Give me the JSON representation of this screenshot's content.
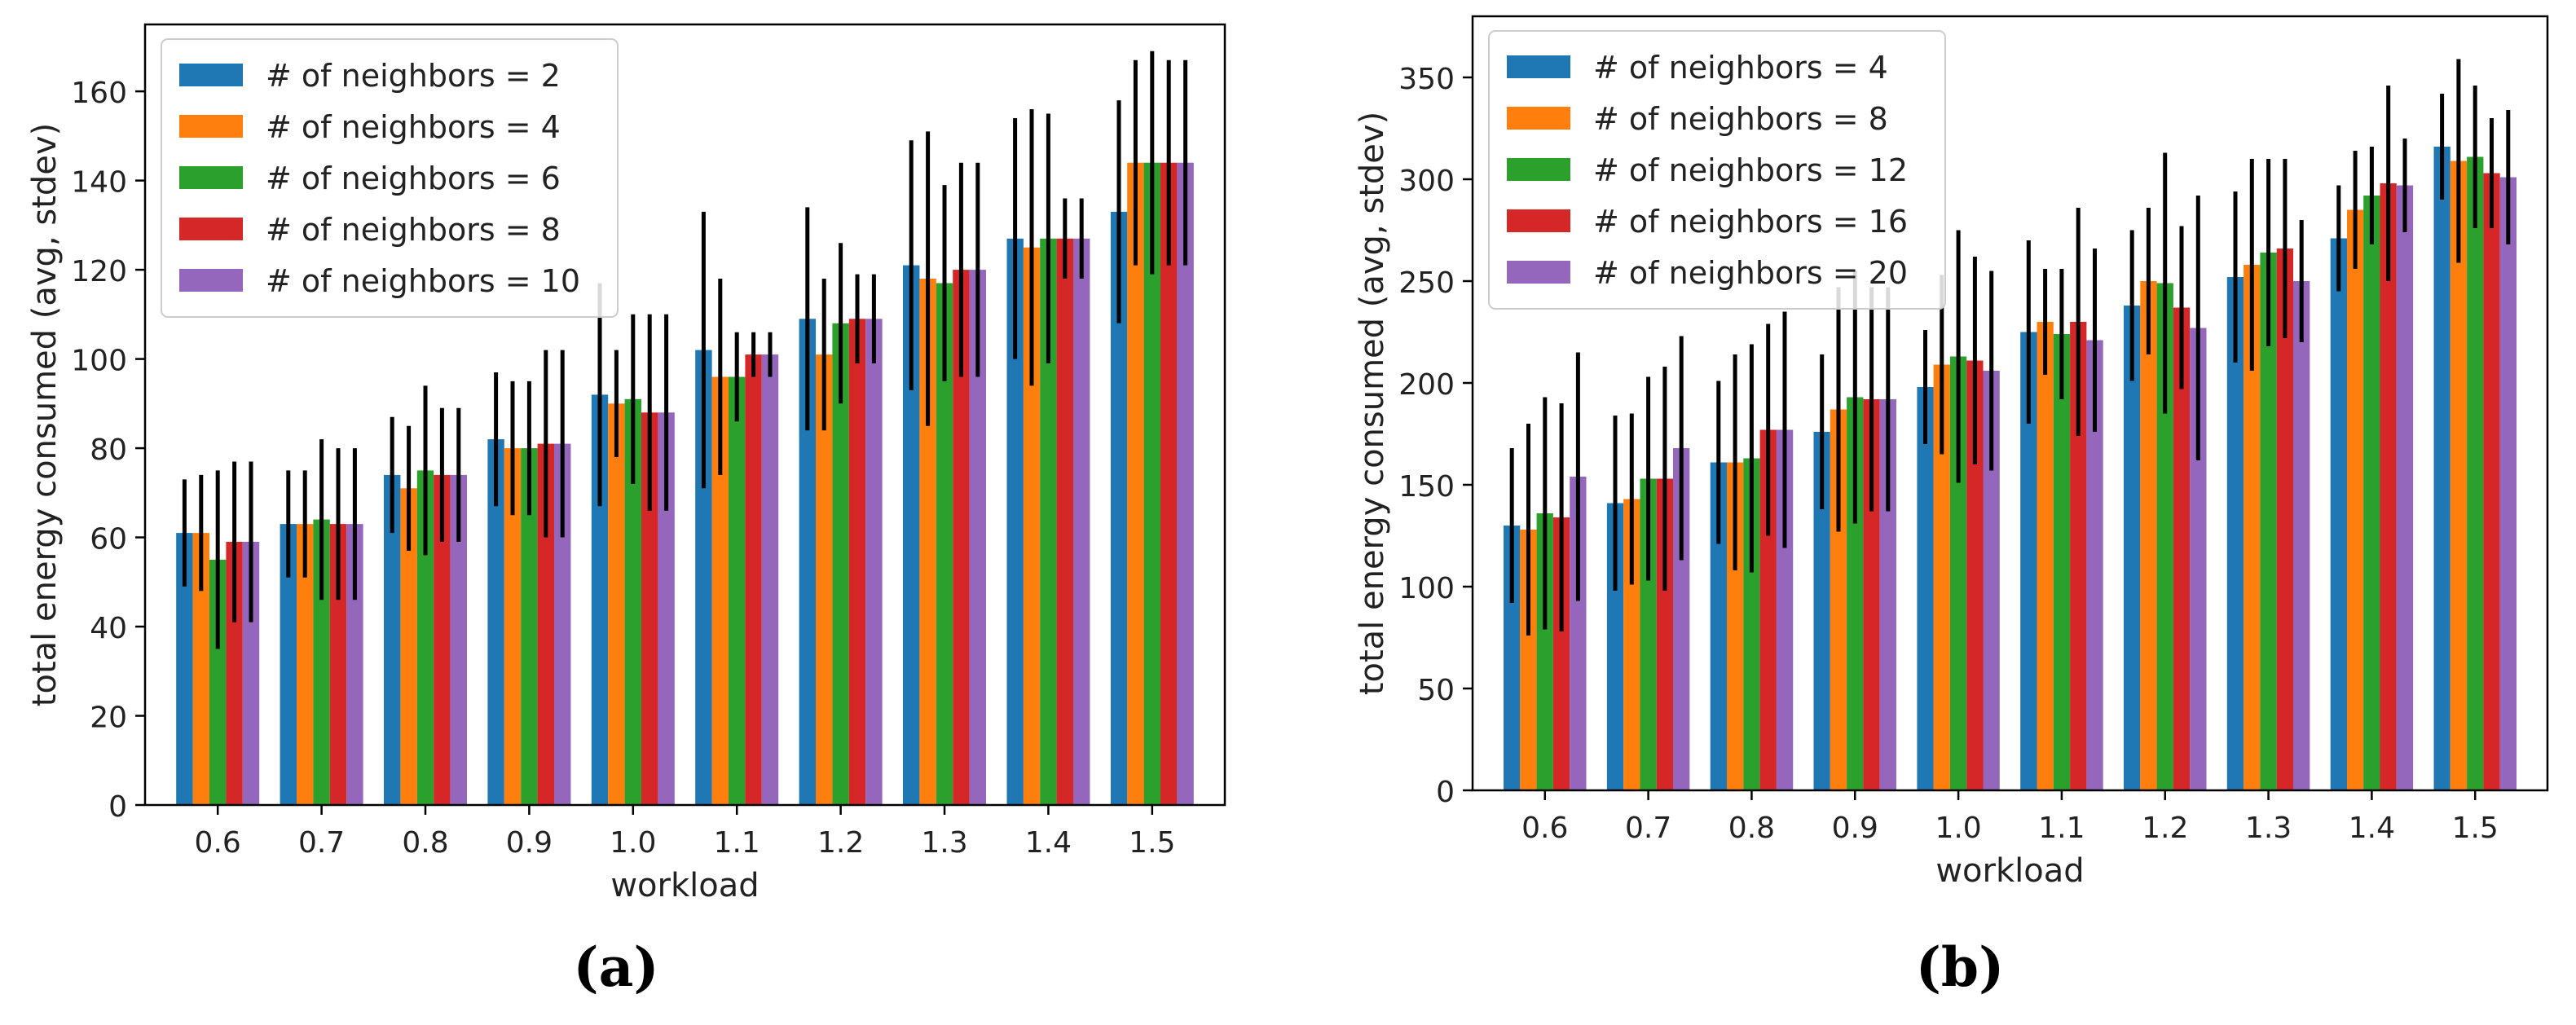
{
  "colors": [
    "#1f77b4",
    "#ff7f0e",
    "#2ca02c",
    "#d62728",
    "#9467bd"
  ],
  "chart_data": [
    {
      "type": "bar",
      "panel_label": "(a)",
      "title": "",
      "xlabel": "workload",
      "ylabel": "total energy consumed (avg, stdev)",
      "ylim": [
        0,
        175
      ],
      "yticks": [
        0,
        20,
        40,
        60,
        80,
        100,
        120,
        140,
        160
      ],
      "categories": [
        "0.6",
        "0.7",
        "0.8",
        "0.9",
        "1.0",
        "1.1",
        "1.2",
        "1.3",
        "1.4",
        "1.5"
      ],
      "legend_position": "top-left",
      "series": [
        {
          "name": "# of neighbors = 2",
          "values": [
            61,
            63,
            74,
            82,
            92,
            102,
            109,
            121,
            127,
            133
          ],
          "stdev": [
            12,
            12,
            13,
            15,
            25,
            31,
            25,
            28,
            27,
            25
          ]
        },
        {
          "name": "# of neighbors = 4",
          "values": [
            61,
            63,
            71,
            80,
            90,
            96,
            101,
            118,
            125,
            144
          ],
          "stdev": [
            13,
            12,
            14,
            15,
            12,
            22,
            17,
            33,
            31,
            23
          ]
        },
        {
          "name": "# of neighbors = 6",
          "values": [
            55,
            64,
            75,
            80,
            91,
            96,
            108,
            117,
            127,
            144
          ],
          "stdev": [
            20,
            18,
            19,
            15,
            19,
            10,
            18,
            22,
            28,
            25
          ]
        },
        {
          "name": "# of neighbors = 8",
          "values": [
            59,
            63,
            74,
            81,
            88,
            101,
            109,
            120,
            127,
            144
          ],
          "stdev": [
            18,
            17,
            15,
            21,
            22,
            5,
            10,
            24,
            9,
            23
          ]
        },
        {
          "name": "# of neighbors = 10",
          "values": [
            59,
            63,
            74,
            81,
            88,
            101,
            109,
            120,
            127,
            144
          ],
          "stdev": [
            18,
            17,
            15,
            21,
            22,
            5,
            10,
            24,
            9,
            23
          ]
        }
      ]
    },
    {
      "type": "bar",
      "panel_label": "(b)",
      "title": "",
      "xlabel": "workload",
      "ylabel": "total energy consumed (avg, stdev)",
      "ylim": [
        0,
        380
      ],
      "yticks": [
        0,
        50,
        100,
        150,
        200,
        250,
        300,
        350
      ],
      "categories": [
        "0.6",
        "0.7",
        "0.8",
        "0.9",
        "1.0",
        "1.1",
        "1.2",
        "1.3",
        "1.4",
        "1.5"
      ],
      "legend_position": "top-left",
      "series": [
        {
          "name": "# of neighbors = 4",
          "values": [
            130,
            141,
            161,
            176,
            198,
            225,
            238,
            252,
            271,
            316
          ],
          "stdev": [
            38,
            43,
            40,
            38,
            28,
            45,
            37,
            42,
            26,
            26
          ]
        },
        {
          "name": "# of neighbors = 8",
          "values": [
            128,
            143,
            161,
            187,
            209,
            230,
            250,
            258,
            285,
            309
          ],
          "stdev": [
            52,
            42,
            53,
            60,
            44,
            26,
            36,
            52,
            29,
            50
          ]
        },
        {
          "name": "# of neighbors = 12",
          "values": [
            136,
            153,
            163,
            193,
            213,
            224,
            249,
            264,
            292,
            311
          ],
          "stdev": [
            57,
            50,
            56,
            62,
            62,
            32,
            64,
            46,
            24,
            35
          ]
        },
        {
          "name": "# of neighbors = 16",
          "values": [
            134,
            153,
            177,
            192,
            211,
            230,
            237,
            266,
            298,
            303
          ],
          "stdev": [
            56,
            55,
            52,
            55,
            51,
            56,
            40,
            44,
            48,
            27
          ]
        },
        {
          "name": "# of neighbors = 20",
          "values": [
            154,
            168,
            177,
            192,
            206,
            221,
            227,
            250,
            297,
            301
          ],
          "stdev": [
            61,
            55,
            58,
            55,
            49,
            45,
            65,
            30,
            23,
            33
          ]
        }
      ]
    }
  ]
}
